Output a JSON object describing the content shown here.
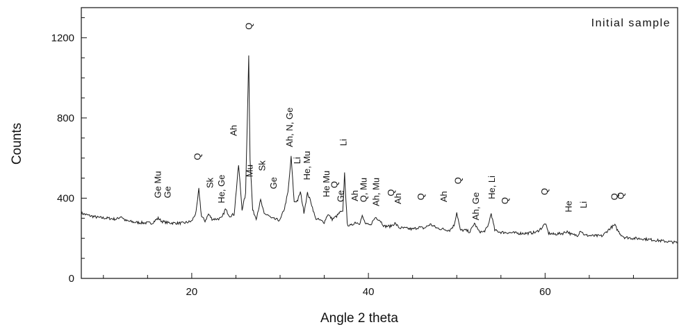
{
  "chart_data": {
    "type": "line",
    "annotation_text": "Initial sample",
    "title": "",
    "xlabel": "Angle 2 theta",
    "ylabel": "Counts",
    "xlim": [
      7.5,
      75
    ],
    "ylim": [
      0,
      1350
    ],
    "x_ticks": [
      20,
      40,
      60
    ],
    "y_ticks": [
      0,
      400,
      800,
      1200
    ],
    "grid": false,
    "legend": "none",
    "line_color": "#1a1a1a",
    "series": [
      {
        "x": [
          7.5,
          8.5,
          9.5,
          10.5,
          11.5,
          12.0,
          12.5,
          13.5,
          14.5,
          15.5,
          16.2,
          16.6,
          17.2,
          18,
          19,
          20,
          20.5,
          20.8,
          21.1,
          21.5,
          21.9,
          22.3,
          22.8,
          23.4,
          23.8,
          24.3,
          24.8,
          25.3,
          25.7,
          26.1,
          26.45,
          26.6,
          26.9,
          27.3,
          27.8,
          28.2,
          28.6,
          29.0,
          29.5,
          30.0,
          30.5,
          30.9,
          31.25,
          31.6,
          32.0,
          32.3,
          32.7,
          33.1,
          33.5,
          34.0,
          34.5,
          35.0,
          35.4,
          35.9,
          36.4,
          36.8,
          37.1,
          37.3,
          37.6,
          38.0,
          38.5,
          39.0,
          39.3,
          39.7,
          40.2,
          40.8,
          41.3,
          41.8,
          42.5,
          43.0,
          43.5,
          44.2,
          45.0,
          45.7,
          46.3,
          47.0,
          47.8,
          48.5,
          49.2,
          49.7,
          50.0,
          50.4,
          51.0,
          51.5,
          52.0,
          52.5,
          53.0,
          53.5,
          53.9,
          54.3,
          55.0,
          56.0,
          57.0,
          58.0,
          59.0,
          59.7,
          60.0,
          60.4,
          61.0,
          62.0,
          62.5,
          63.0,
          63.7,
          64.0,
          64.5,
          65.5,
          66.5,
          67.0,
          67.5,
          67.9,
          68.2,
          68.6,
          69.0,
          70.0,
          71.0,
          72.0,
          73.0,
          74.0,
          75.0
        ],
        "values": [
          325,
          312,
          303,
          300,
          295,
          310,
          288,
          280,
          277,
          276,
          300,
          285,
          278,
          276,
          275,
          285,
          330,
          445,
          310,
          286,
          320,
          296,
          296,
          300,
          345,
          312,
          320,
          565,
          345,
          420,
          1110,
          600,
          340,
          300,
          390,
          320,
          318,
          300,
          294,
          290,
          350,
          430,
          605,
          380,
          390,
          430,
          330,
          425,
          380,
          300,
          290,
          280,
          320,
          295,
          310,
          330,
          330,
          525,
          270,
          262,
          280,
          275,
          310,
          270,
          265,
          305,
          290,
          260,
          260,
          275,
          252,
          250,
          245,
          255,
          250,
          270,
          250,
          245,
          240,
          265,
          330,
          240,
          240,
          232,
          275,
          235,
          230,
          255,
          325,
          240,
          230,
          228,
          225,
          225,
          230,
          255,
          275,
          225,
          220,
          225,
          235,
          218,
          215,
          240,
          215,
          212,
          212,
          235,
          255,
          265,
          240,
          218,
          205,
          200,
          198,
          193,
          188,
          183,
          178
        ]
      }
    ],
    "peak_labels": [
      {
        "text": "Ge Mu",
        "x": 16.5,
        "y": 400
      },
      {
        "text": "Ge",
        "x": 17.6,
        "y": 400
      },
      {
        "text": "Q",
        "x": 21.0,
        "y": 590
      },
      {
        "text": "Sk",
        "x": 22.4,
        "y": 450
      },
      {
        "text": "He, Ge",
        "x": 23.7,
        "y": 375
      },
      {
        "text": "Ah",
        "x": 25.1,
        "y": 710
      },
      {
        "text": "Q",
        "x": 26.8,
        "y": 1240
      },
      {
        "text": "Mu",
        "x": 26.9,
        "y": 505
      },
      {
        "text": "Sk",
        "x": 28.3,
        "y": 535
      },
      {
        "text": "Ge",
        "x": 29.6,
        "y": 445
      },
      {
        "text": "Ah, N, Ge",
        "x": 31.4,
        "y": 655
      },
      {
        "text": "Li",
        "x": 32.3,
        "y": 570
      },
      {
        "text": "He, Mu",
        "x": 33.4,
        "y": 490
      },
      {
        "text": "He Mu",
        "x": 35.6,
        "y": 405
      },
      {
        "text": "Q",
        "x": 36.5,
        "y": 450
      },
      {
        "text": "Ge",
        "x": 37.2,
        "y": 380
      },
      {
        "text": "Li",
        "x": 37.5,
        "y": 660
      },
      {
        "text": "Ah",
        "x": 38.8,
        "y": 385
      },
      {
        "text": "Q, Mu",
        "x": 39.8,
        "y": 380
      },
      {
        "text": "Ah, Mu",
        "x": 41.2,
        "y": 360
      },
      {
        "text": "Q",
        "x": 42.9,
        "y": 410
      },
      {
        "text": "Ah",
        "x": 43.7,
        "y": 370
      },
      {
        "text": "Q",
        "x": 46.3,
        "y": 390
      },
      {
        "text": "Ah",
        "x": 48.9,
        "y": 380
      },
      {
        "text": "Q",
        "x": 50.5,
        "y": 470
      },
      {
        "text": "Ah, Ge",
        "x": 52.5,
        "y": 290
      },
      {
        "text": "He, Li",
        "x": 54.3,
        "y": 395
      },
      {
        "text": "Q",
        "x": 55.8,
        "y": 370
      },
      {
        "text": "Q",
        "x": 60.3,
        "y": 415
      },
      {
        "text": "He",
        "x": 63.0,
        "y": 330
      },
      {
        "text": "Li",
        "x": 64.7,
        "y": 350
      },
      {
        "text": "Q",
        "x": 68.2,
        "y": 390
      },
      {
        "text": "Q",
        "x": 68.9,
        "y": 395
      }
    ]
  }
}
